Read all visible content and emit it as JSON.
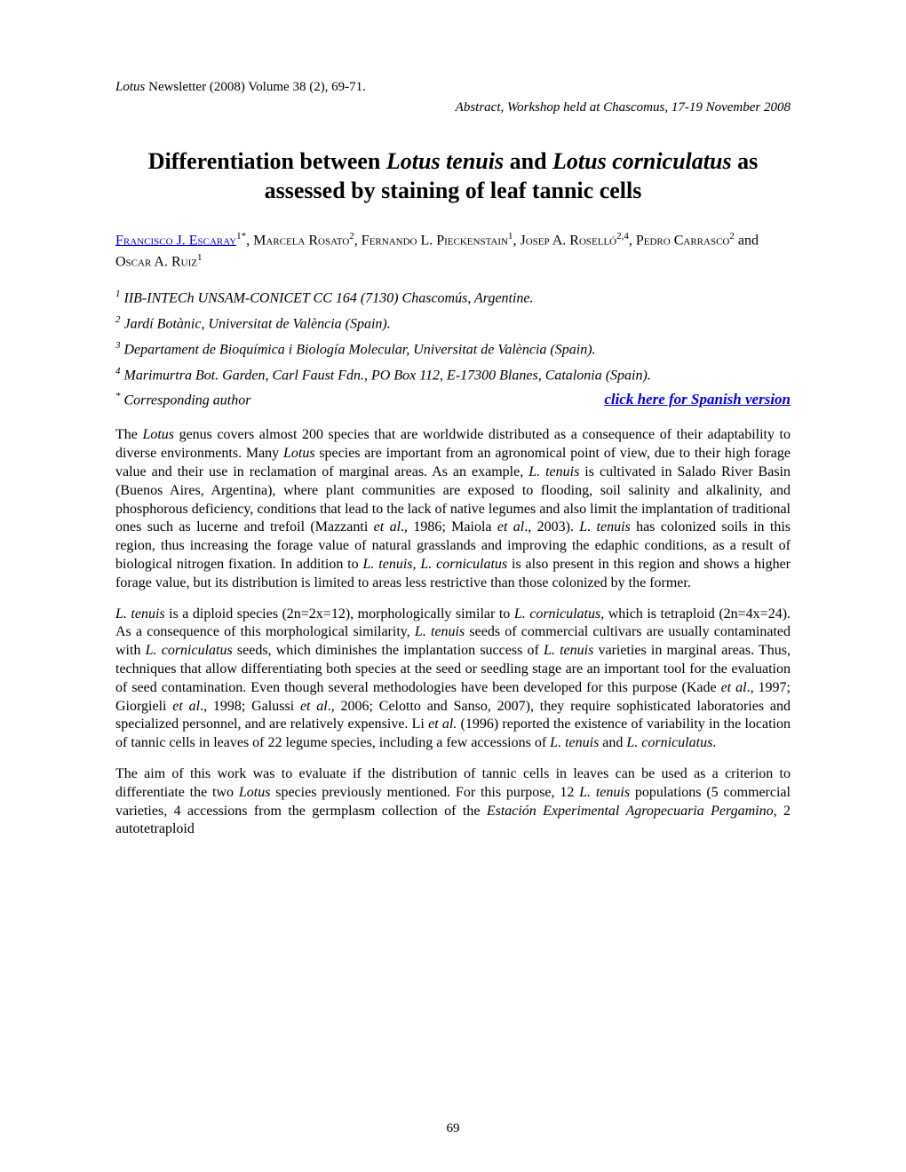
{
  "header": {
    "journal_line": "Lotus Newsletter (2008) Volume 38 (2), 69-71.",
    "journal_italic_word": "Lotus",
    "journal_rest": " Newsletter (2008) Volume 38 (2), 69-71.",
    "abstract_line": "Abstract, Workshop held at Chascomus, 17-19 November 2008"
  },
  "title": {
    "part1": "Differentiation between ",
    "italic1": "Lotus tenuis",
    "part2": " and ",
    "italic2": "Lotus corniculatus",
    "part3": " as assessed by staining of leaf tannic cells"
  },
  "authors": {
    "a1_name": "Francisco J. Escaray",
    "a1_sup": "1*",
    "a2_name": "Marcela Rosato",
    "a2_sup": "2",
    "a3_name": "Fernando L. Pieckenstain",
    "a3_sup": "1",
    "a4_name": "Josep A. Roselló",
    "a4_sup": "2,4",
    "a5_name": "Pedro Carrasco",
    "a5_sup": "2",
    "a6_name": "Oscar A. Ruiz",
    "a6_sup": "1"
  },
  "affiliations": {
    "aff1_sup": "1",
    "aff1": " IIB-INTECh UNSAM-CONICET CC 164 (7130) Chascomús, Argentine.",
    "aff2_sup": "2",
    "aff2": " Jardí Botànic, Universitat de València (Spain).",
    "aff3_sup": "3",
    "aff3": " Departament de Bioquímica i Biología Molecular, Universitat de València (Spain).",
    "aff4_sup": "4",
    "aff4": " Marimurtra Bot. Garden, Carl Faust Fdn., PO Box 112, E-17300 Blanes, Catalonia (Spain).",
    "corr_sup": "*",
    "corr": " Corresponding author",
    "spanish_link": "click here for Spanish version"
  },
  "paragraphs": {
    "p1_a": "The ",
    "p1_i1": "Lotus",
    "p1_b": " genus covers almost 200 species that are worldwide distributed as a consequence of their adaptability to diverse environments. Many ",
    "p1_i2": "Lotus",
    "p1_c": " species are important from an agronomical point of view, due to their high forage value and their use in reclamation of marginal areas. As an example, ",
    "p1_i3": "L. tenuis",
    "p1_d": " is cultivated in Salado River Basin (Buenos Aires, Argentina), where plant communities are exposed to flooding, soil salinity and alkalinity, and phosphorous deficiency, conditions that lead to the lack of native legumes and also limit the implantation of traditional ones such as lucerne and trefoil (Mazzanti ",
    "p1_i4": "et al",
    "p1_e": "., 1986; Maiola ",
    "p1_i5": "et al",
    "p1_f": "., 2003). ",
    "p1_i6": "L. tenuis",
    "p1_g": " has colonized soils in this region, thus increasing the forage value of natural grasslands and improving the edaphic conditions, as a result of biological nitrogen fixation. In addition to ",
    "p1_i7": "L. tenuis, L. corniculatus",
    "p1_h": " is also present in this region and shows a higher forage value, but its distribution is limited to areas less restrictive than those colonized by the former.",
    "p2_i1": "L. tenuis",
    "p2_a": " is a diploid species (2n=2x=12), morphologically similar to ",
    "p2_i2": "L. corniculatus",
    "p2_b": ", which is tetraploid (2n=4x=24). As a consequence of this morphological similarity, ",
    "p2_i3": "L. tenuis",
    "p2_c": " seeds of commercial cultivars are usually contaminated with ",
    "p2_i4": "L. corniculatus",
    "p2_d": " seeds, which diminishes the implantation success of ",
    "p2_i5": "L. tenuis",
    "p2_e": " varieties in marginal areas. Thus, techniques that allow differentiating both species at the seed or seedling stage are an important tool for the evaluation of seed contamination. Even though several methodologies have been developed for this purpose (Kade ",
    "p2_i6": "et al",
    "p2_f": "., 1997; Giorgieli ",
    "p2_i7": "et al",
    "p2_g": "., 1998; Galussi ",
    "p2_i8": "et al",
    "p2_h": "., 2006; Celotto and Sanso, 2007), they require sophisticated laboratories and specialized personnel, and are relatively expensive. Li ",
    "p2_i9": "et al.",
    "p2_i": " (1996) reported the existence of variability in the location of tannic cells in leaves of 22 legume species, including a few accessions of ",
    "p2_i10": "L. tenuis",
    "p2_j": " and ",
    "p2_i11": "L. corniculatus",
    "p2_k": ".",
    "p3_a": "The aim of this work was to evaluate if the distribution of tannic cells in leaves can be used as a criterion to differentiate the two ",
    "p3_i1": "Lotus",
    "p3_b": " species previously mentioned. For this purpose, 12 ",
    "p3_i2": "L. tenuis",
    "p3_c": " populations (5 commercial varieties, 4 accessions from the germplasm collection of the ",
    "p3_i3": "Estación Experimental Agropecuaria Pergamino",
    "p3_d": ", 2 autotetraploid"
  },
  "page_number": "69",
  "colors": {
    "text": "#000000",
    "link": "#0000ee",
    "background": "#ffffff"
  },
  "typography": {
    "body_fontsize": 16,
    "title_fontsize": 26,
    "header_fontsize": 15,
    "font_family": "Times New Roman"
  }
}
